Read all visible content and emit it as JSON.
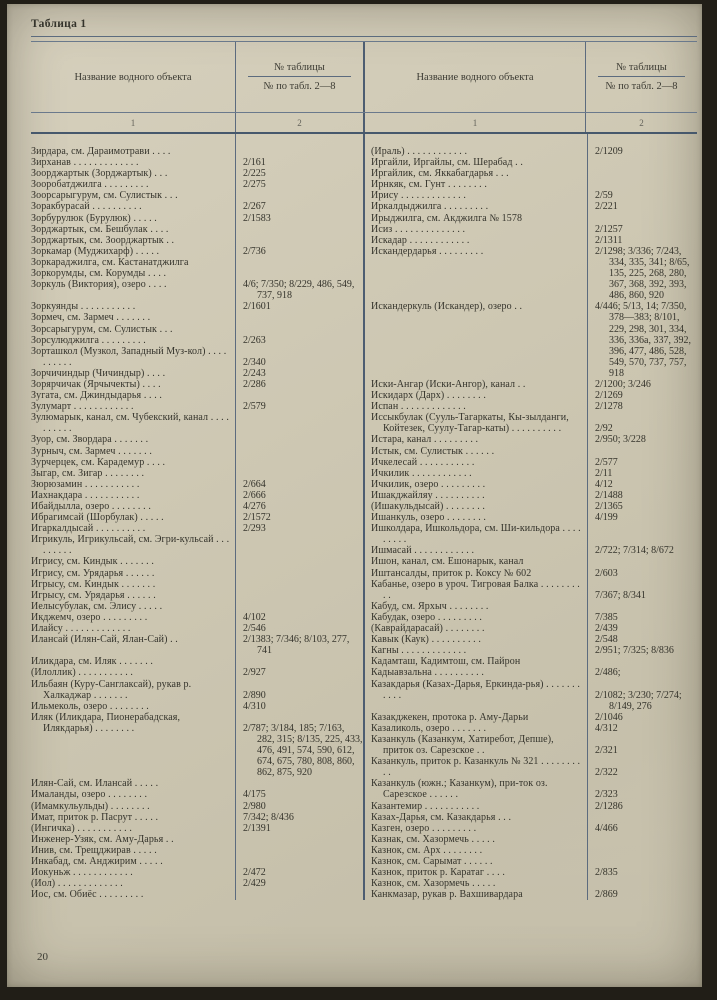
{
  "page": {
    "table_label": "Таблица 1",
    "page_number": "20"
  },
  "colors": {
    "paper": "#cdc7b2",
    "rule": "#5c6b7e",
    "ink": "#34332b"
  },
  "header": {
    "name_col": "Название водного объекта",
    "num_top": "№ таблицы",
    "num_bottom": "№ по табл. 2—8",
    "sub_name": "1",
    "sub_num": "2"
  },
  "left_entries": [
    {
      "name": "Зирдара, см. Дараимотрави . . . .",
      "value": ""
    },
    {
      "name": "Зирханав . . . . . . . . . . . . .",
      "value": "2/161"
    },
    {
      "name": "Зоорджартык (Зорджартык) . . .",
      "value": "2/225"
    },
    {
      "name": "Зооробатджилга . . . . . . . . .",
      "value": "2/275"
    },
    {
      "name": "Зоорсарыгурум, см. Сулистык . . .",
      "value": ""
    },
    {
      "name": "Зоракбурасай . . . . . . . . . .",
      "value": "2/267"
    },
    {
      "name": "Зорбурулюк (Бурулюк) . . . . .",
      "value": "2/1583"
    },
    {
      "name": "Зорджартык, см. Бешбулак . . . .",
      "value": ""
    },
    {
      "name": "Зорджартык, см. Зоорджартык . .",
      "value": ""
    },
    {
      "name": "Зоркамар (Муджихарф) . . . . .",
      "value": "2/736"
    },
    {
      "name": "Зоркараджилга, см. Кастанатджилга",
      "value": ""
    },
    {
      "name": "Зоркорумды, см. Корумды . . . .",
      "value": ""
    },
    {
      "name": "Зоркуль (Виктория), озеро . . . .",
      "value": "4/6; 7/350; 8/229, 486, 549, 737, 918"
    },
    {
      "name": "Зоркуянды . . . . . . . . . . .",
      "value": "2/1601"
    },
    {
      "name": "Зормеч, см. Зармеч . . . . . . .",
      "value": ""
    },
    {
      "name": "Зорсарыгурум, см. Сулистык . . .",
      "value": ""
    },
    {
      "name": "Зорсулюджилга . . . . . . . . .",
      "value": "2/263"
    },
    {
      "name": "Зорташкол (Музкол, Западный Муз-кол) . . . . . . . . . .",
      "value": "2/340"
    },
    {
      "name": "Зорчичиндыр (Чичиндыр) . . . .",
      "value": "2/243"
    },
    {
      "name": "Зорярчичак (Ярчычекты) . . . .",
      "value": "2/286"
    },
    {
      "name": "Зугата, см. Джиндыдарья . . . .",
      "value": ""
    },
    {
      "name": "Зулумарт . . . . . . . . . . . .",
      "value": "2/579"
    },
    {
      "name": "Зулюмарык, канал, см. Чубекский, канал . . . . . . . . . .",
      "value": ""
    },
    {
      "name": "Зуор, см. Звордара . . . . . . .",
      "value": ""
    },
    {
      "name": "Зурныч, см. Зармеч . . . . . . .",
      "value": ""
    },
    {
      "name": "Зурчерцек, см. Карадемур . . . .",
      "value": ""
    },
    {
      "name": "Зыгар, см. Зигар . . . . . . . .",
      "value": ""
    },
    {
      "name": "Зюрюзамин . . . . . . . . . . .",
      "value": "2/664"
    },
    {
      "name": "Иахнакдара . . . . . . . . . . .",
      "value": "2/666"
    },
    {
      "name": "Ибайдылла, озеро . . . . . . . .",
      "value": "4/276"
    },
    {
      "name": "Ибрагимсай (Шорбулак) . . . . .",
      "value": "2/1572"
    },
    {
      "name": "Игаркалдысай . . . . . . . . . .",
      "value": "2/293"
    },
    {
      "name": "Игрикуль, Игрикульсай, см. Эгри-кульсай . . . . . . . . .",
      "value": ""
    },
    {
      "name": "Игрису, см. Киндык . . . . . . .",
      "value": ""
    },
    {
      "name": "Игрису, см. Урядарья . . . . . .",
      "value": ""
    },
    {
      "name": "Игрысу, см. Киндык . . . . . . .",
      "value": ""
    },
    {
      "name": "Игрысу, см. Урядарья . . . . . .",
      "value": ""
    },
    {
      "name": "Иелысубулак, см. Элису . . . . .",
      "value": ""
    },
    {
      "name": "Икджемч, озеро . . . . . . . . .",
      "value": "4/102"
    },
    {
      "name": "Илайсу . . . . . . . . . . . . .",
      "value": "2/546"
    },
    {
      "name": "Илансай (Илян-Сай, Ялан-Сай) . .",
      "value": "2/1383; 7/346; 8/103, 277, 741"
    },
    {
      "name": "Иликдара, см. Иляк . . . . . . .",
      "value": ""
    },
    {
      "name": "(Илоллик) . . . . . . . . . . .",
      "value": "2/927"
    },
    {
      "name": "Ильбаян (Куру-Санглаксай), рукав р. Халкаджар . . . . . . .",
      "value": "2/890"
    },
    {
      "name": "Ильмеколь, озеро . . . . . . . .",
      "value": "4/310"
    },
    {
      "name": "Иляк (Иликдара, Пионерабадская, Илякдарья) . . . . . . . .",
      "value": "2/787; 3/184, 185; 7/163, 282, 315; 8/135, 225, 433, 476, 491, 574, 590, 612, 674, 675, 780, 808, 860, 862, 875, 920"
    },
    {
      "name": "Илян-Сай, см. Илансай . . . . .",
      "value": ""
    },
    {
      "name": "Ималанды, озеро . . . . . . . .",
      "value": "4/175"
    },
    {
      "name": "(Имамкульульды) . . . . . . . .",
      "value": "2/980"
    },
    {
      "name": "Имат, приток р. Пасрут . . . . .",
      "value": "7/342; 8/436"
    },
    {
      "name": "(Ингичка) . . . . . . . . . . .",
      "value": "2/1391"
    },
    {
      "name": "Инженер-Узяк, см. Аму-Дарья . .",
      "value": ""
    },
    {
      "name": "Инив, см. Трещджирав . . . . .",
      "value": ""
    },
    {
      "name": "Инкабад, см. Анджирим . . . . .",
      "value": ""
    },
    {
      "name": "Иокуньж . . . . . . . . . . . .",
      "value": "2/472"
    },
    {
      "name": "(Иол) . . . . . . . . . . . . .",
      "value": "2/429"
    },
    {
      "name": "Иос, см. Обиёс . . . . . . . . .",
      "value": ""
    }
  ],
  "right_entries": [
    {
      "name": "(Ираль) . . . . . . . . . . . .",
      "value": "2/1209"
    },
    {
      "name": "Иргайли, Иргайлы, см. Шерабад . .",
      "value": ""
    },
    {
      "name": "Иргайлик, см. Яккабагдарья . . .",
      "value": ""
    },
    {
      "name": "Ирнкяк, см. Гунт . . . . . . . .",
      "value": ""
    },
    {
      "name": "Ирису . . . . . . . . . . . . .",
      "value": "2/59"
    },
    {
      "name": "Иркалдыджилга . . . . . . . . .",
      "value": "2/221"
    },
    {
      "name": "Ирыджилга, см. Акджилга № 1578",
      "value": ""
    },
    {
      "name": "Исиз . . . . . . . . . . . . . .",
      "value": "2/1257"
    },
    {
      "name": "Искадар . . . . . . . . . . . .",
      "value": "2/1311"
    },
    {
      "name": "Искандердарья . . . . . . . . .",
      "value": "2/1298; 3/336; 7/243, 334, 335, 341; 8/65, 135, 225, 268, 280, 367, 368, 392, 393, 486, 860, 920"
    },
    {
      "name": "Искандеркуль (Искандер), озеро . .",
      "value": "4/446; 5/13, 14; 7/350, 378—383; 8/101, 229, 298, 301, 334, 336, 336а, 337, 392, 396, 477, 486, 528, 549, 570, 737, 757, 918"
    },
    {
      "name": "Иски-Ангар (Иски-Ангор), канал . .",
      "value": "2/1200; 3/246"
    },
    {
      "name": "Искидарх (Дарх) . . . . . . . .",
      "value": "2/1269"
    },
    {
      "name": "Испан . . . . . . . . . . . . .",
      "value": "2/1278"
    },
    {
      "name": "Иссыкбулак (Сууль-Тагаркаты, Кы-зылданги, Койтезек, Суулу-Тагар-каты) . . . . . . . . . .",
      "value": "2/92"
    },
    {
      "name": "Истара, канал . . . . . . . . .",
      "value": "2/950; 3/228"
    },
    {
      "name": "Истык, см. Сулистык . . . . . .",
      "value": ""
    },
    {
      "name": "Ичкелесай . . . . . . . . . . .",
      "value": "2/577"
    },
    {
      "name": "Ичкилик . . . . . . . . . . . .",
      "value": "2/11"
    },
    {
      "name": "Ичкилик, озеро . . . . . . . . .",
      "value": "4/12"
    },
    {
      "name": "Ишакджайляу . . . . . . . . . .",
      "value": "2/1488"
    },
    {
      "name": "(Ишакульдысай) . . . . . . . .",
      "value": "2/1365"
    },
    {
      "name": "Ишанкуль, озеро . . . . . . . .",
      "value": "4/199"
    },
    {
      "name": "Ишколдара, Ишкольдора, см. Ши-кильдора . . . . . . . . .",
      "value": ""
    },
    {
      "name": "Ишмасай . . . . . . . . . . . .",
      "value": "2/722; 7/314; 8/672"
    },
    {
      "name": "Ишон, канал, см. Ешонарык, канал",
      "value": ""
    },
    {
      "name": "Иштансалды, приток р. Коксу № 602",
      "value": "2/603"
    },
    {
      "name": "Кабанье, озеро в уроч. Тигровая Балка . . . . . . . . . .",
      "value": "7/367; 8/341"
    },
    {
      "name": "Кабуд, см. Ярхыч . . . . . . . .",
      "value": ""
    },
    {
      "name": "Кабудак, озеро . . . . . . . . .",
      "value": "7/385"
    },
    {
      "name": "(Каврайдарасай) . . . . . . . .",
      "value": "2/439"
    },
    {
      "name": "Кавык (Каук) . . . . . . . . . .",
      "value": "2/548"
    },
    {
      "name": "Кагны . . . . . . . . . . . . .",
      "value": "2/951; 7/325; 8/836"
    },
    {
      "name": "Кадамташ, Кадимтош, см. Пайрон",
      "value": ""
    },
    {
      "name": "Кадыавзальна . . . . . . . . . .",
      "value": "2/486;"
    },
    {
      "name": "Казакдарья (Казах-Дарья, Еркинда-рья) . . . . . . . . . . .",
      "value": "2/1082; 3/230; 7/274; 8/149, 276"
    },
    {
      "name": "Казакджекен, протока р. Аму-Дарьи",
      "value": "2/1046"
    },
    {
      "name": "Казаликоль, озеро . . . . . . .",
      "value": "4/312"
    },
    {
      "name": "Казанкуль (Казанкум, Хатиребот, Депше), приток оз. Сарезское . .",
      "value": "2/321"
    },
    {
      "name": "Казанкуль, приток р. Казанкуль № 321 . . . . . . . . . .",
      "value": "2/322"
    },
    {
      "name": "Казанкуль (южн.; Казанкум), при-ток оз. Сарезское . . . . . .",
      "value": "2/323"
    },
    {
      "name": "Казантемир . . . . . . . . . . .",
      "value": "2/1286"
    },
    {
      "name": "Казах-Дарья, см. Казакдарья . . .",
      "value": ""
    },
    {
      "name": "Казген, озеро . . . . . . . . .",
      "value": "4/466"
    },
    {
      "name": "Казнак, см. Хазормечь . . . . .",
      "value": ""
    },
    {
      "name": "Казнок, см. Арх . . . . . . . .",
      "value": ""
    },
    {
      "name": "Казнок, см. Сарымат . . . . . .",
      "value": ""
    },
    {
      "name": "Казнок, приток р. Каратаг . . . .",
      "value": "2/835"
    },
    {
      "name": "Казнок, см. Хазормечь . . . . .",
      "value": ""
    },
    {
      "name": "Канкмазар, рукав р. Вахшивардара",
      "value": "2/869"
    }
  ]
}
